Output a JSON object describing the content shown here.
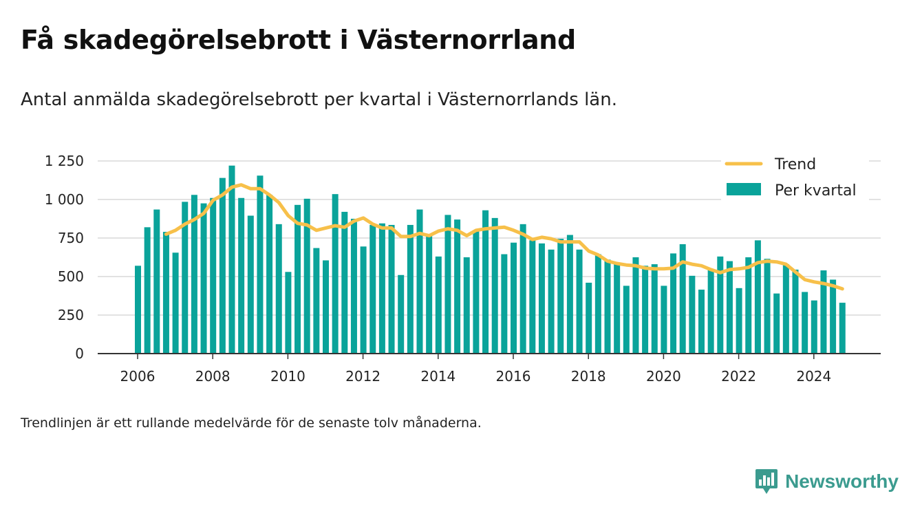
{
  "title": "Få skadegörelsebrott i Västernorrland",
  "subtitle": "Antal anmälda skadegörelsebrott per kvartal i Västernorrlands län.",
  "footnote": "Trendlinjen är ett rullande medelvärde för de senaste tolv månaderna.",
  "brand": {
    "name": "Newsworthy",
    "icon": "newsworthy-chart-bubble-icon",
    "color": "#3b9b8f"
  },
  "colors": {
    "bars": "#0aa39a",
    "trend": "#f7c04a",
    "grid": "#d9d9d9",
    "axis": "#333333"
  },
  "chart_data": {
    "type": "bar",
    "x_unit": "quarter",
    "start": "2006-Q1",
    "x_ticks": [
      "2006",
      "2008",
      "2010",
      "2012",
      "2014",
      "2016",
      "2018",
      "2020",
      "2022",
      "2024"
    ],
    "y_ticks": [
      "0",
      "250",
      "500",
      "750",
      "1 000",
      "1 250"
    ],
    "ylim": [
      0,
      1250
    ],
    "grid": true,
    "legend_position": "top-right",
    "series": [
      {
        "name": "Per kvartal",
        "type": "bar",
        "values": [
          570,
          820,
          935,
          790,
          655,
          985,
          1030,
          975,
          1010,
          1140,
          1220,
          1010,
          895,
          1155,
          1030,
          840,
          530,
          965,
          1005,
          685,
          605,
          1035,
          920,
          875,
          695,
          835,
          845,
          835,
          510,
          835,
          935,
          775,
          630,
          900,
          870,
          625,
          800,
          930,
          880,
          645,
          720,
          840,
          735,
          715,
          675,
          745,
          770,
          675,
          460,
          645,
          610,
          585,
          440,
          625,
          570,
          580,
          440,
          650,
          710,
          505,
          415,
          545,
          630,
          600,
          425,
          625,
          735,
          615,
          390,
          580,
          545,
          400,
          345,
          540,
          480,
          330
        ]
      },
      {
        "name": "Trend",
        "type": "line",
        "start_index": 3,
        "values": [
          775,
          800,
          840,
          870,
          910,
          995,
          1030,
          1080,
          1095,
          1070,
          1070,
          1030,
          980,
          895,
          845,
          835,
          800,
          815,
          830,
          820,
          860,
          880,
          840,
          815,
          815,
          760,
          760,
          780,
          765,
          795,
          810,
          800,
          765,
          800,
          810,
          815,
          820,
          800,
          775,
          740,
          755,
          745,
          725,
          725,
          725,
          665,
          640,
          600,
          585,
          575,
          570,
          555,
          550,
          550,
          555,
          595,
          580,
          570,
          545,
          525,
          545,
          550,
          560,
          590,
          600,
          595,
          580,
          530,
          480,
          465,
          455,
          440,
          420
        ]
      }
    ]
  }
}
